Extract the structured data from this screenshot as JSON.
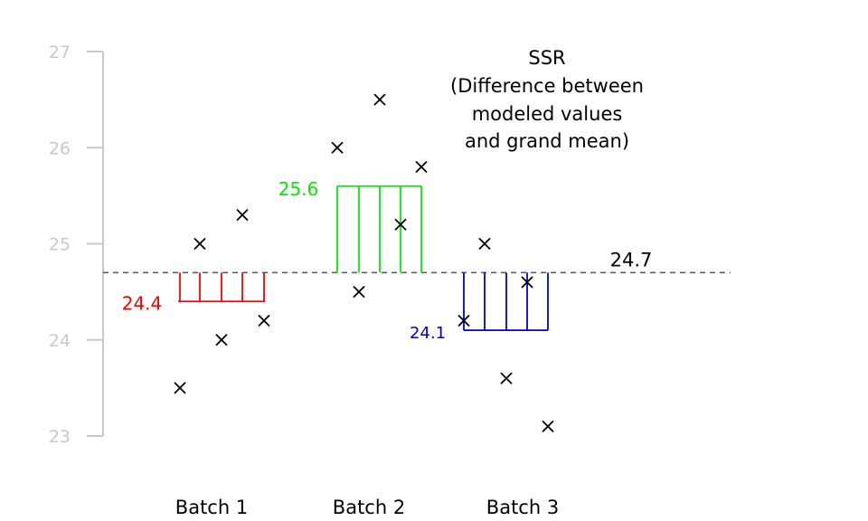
{
  "chart_data": {
    "type": "scatter",
    "title": "",
    "xlabel": "",
    "ylabel": "",
    "ylim": [
      23,
      27
    ],
    "y_ticks": [
      "23",
      "24",
      "25",
      "26",
      "27"
    ],
    "categories": [
      "Batch 1",
      "Batch 2",
      "Batch 3"
    ],
    "observations": [
      {
        "batch": "Batch 1",
        "values": [
          23.5,
          25.0,
          24.0,
          25.3,
          24.2
        ]
      },
      {
        "batch": "Batch 2",
        "values": [
          26.0,
          24.5,
          26.5,
          25.2,
          25.8
        ]
      },
      {
        "batch": "Batch 3",
        "values": [
          24.2,
          25.0,
          23.6,
          24.6,
          23.1
        ]
      }
    ],
    "marker": "x",
    "grand_mean": {
      "value": 24.7,
      "label": "24.7",
      "color": "#555555",
      "style": "dashed"
    },
    "batch_means": [
      {
        "batch": "Batch 1",
        "value": 24.4,
        "label": "24.4",
        "color": "#ff0000"
      },
      {
        "batch": "Batch 2",
        "value": 25.6,
        "label": "25.6",
        "color": "#00ee00"
      },
      {
        "batch": "Batch 3",
        "value": 24.1,
        "label": "24.1",
        "color": "#0000cc"
      }
    ],
    "annotation": [
      "SSR",
      "(Difference between",
      "modeled values",
      "and grand mean)"
    ],
    "axis_color": "#c8c8c8",
    "grid": false,
    "legend": "none"
  }
}
